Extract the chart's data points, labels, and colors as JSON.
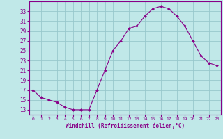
{
  "x": [
    0,
    1,
    2,
    3,
    4,
    5,
    6,
    7,
    8,
    9,
    10,
    11,
    12,
    13,
    14,
    15,
    16,
    17,
    18,
    19,
    20,
    21,
    22,
    23
  ],
  "y": [
    17,
    15.5,
    15,
    14.5,
    13.5,
    13,
    13,
    13,
    17,
    21,
    25,
    27,
    29.5,
    30,
    32,
    33.5,
    34,
    33.5,
    32,
    30,
    27,
    24,
    22.5,
    22
  ],
  "yticks": [
    13,
    15,
    17,
    19,
    21,
    23,
    25,
    27,
    29,
    31,
    33
  ],
  "xlabel": "Windchill (Refroidissement éolien,°C)",
  "line_color": "#880088",
  "marker_color": "#880088",
  "bg_color": "#c0e8e8",
  "grid_color": "#98c8cc",
  "axis_color": "#880088",
  "font_color": "#880088"
}
